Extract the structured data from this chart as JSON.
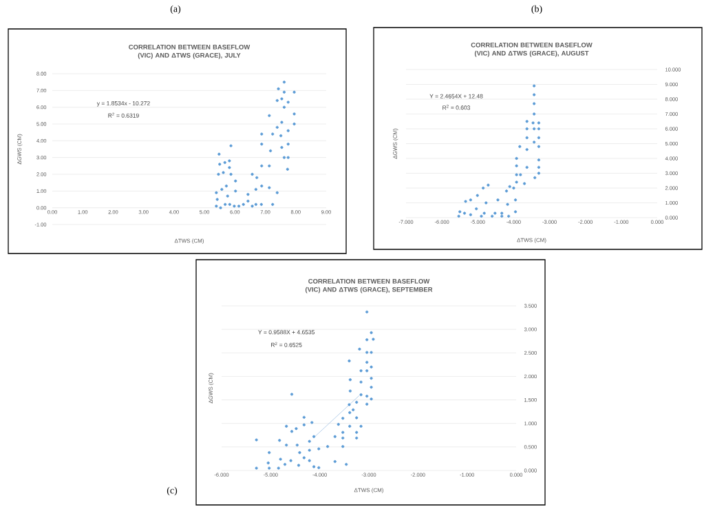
{
  "chart_data": [
    {
      "type": "scatter",
      "title": "CORRELATION BETWEEN BASEFLOW (VIC) AND ΔTWS (GRACE), JULY",
      "xlabel": "ΔTWS  (CM)",
      "ylabel": "ΔGWS (CM)",
      "annotations": [
        "(a)",
        "y = 1.8534x - 10.272",
        "R$^{2}$ = 0.6319"
      ],
      "xlim": [
        0,
        9
      ],
      "ylim": [
        -1,
        8
      ],
      "xticks": [
        {
          "value": 0,
          "label": "0.00"
        },
        {
          "value": 1,
          "label": "1.00"
        },
        {
          "value": 2,
          "label": "2.00"
        },
        {
          "value": 3,
          "label": "3.00"
        },
        {
          "value": 4,
          "label": "4.00"
        },
        {
          "value": 5,
          "label": "5.00"
        },
        {
          "value": 6,
          "label": "6.00"
        },
        {
          "value": 7,
          "label": "7.00"
        },
        {
          "value": 8,
          "label": "8.00"
        },
        {
          "value": 9,
          "label": "9.00"
        }
      ],
      "yticks": [
        {
          "value": -1,
          "label": "-1.00"
        },
        {
          "value": 0,
          "label": "0.00"
        },
        {
          "value": 1,
          "label": "1.00"
        },
        {
          "value": 2,
          "label": "2.00"
        },
        {
          "value": 3,
          "label": "3.00"
        },
        {
          "value": 4,
          "label": "4.00"
        },
        {
          "value": 5,
          "label": "5.00"
        },
        {
          "value": 6,
          "label": "6.00"
        },
        {
          "value": 7,
          "label": "7.00"
        },
        {
          "value": 8,
          "label": "8.00"
        }
      ],
      "grid": "y",
      "marker": "circle",
      "series": [
        {
          "type": "scatter",
          "color": "#5b9bd5",
          "x": [
            5.48,
            5.46,
            5.62,
            5.5,
            5.67,
            5.87,
            5.82,
            5.82,
            5.87,
            6.02,
            6.02,
            5.39,
            5.42,
            5.57,
            5.72,
            5.76,
            5.39,
            5.53,
            5.68,
            5.83,
            5.98,
            6.13,
            6.28,
            6.43,
            6.57,
            6.69,
            6.43,
            6.57,
            6.69,
            6.72,
            6.87,
            6.88,
            6.88,
            6.88,
            6.88,
            7.13,
            7.13,
            7.24,
            7.39,
            7.13,
            7.17,
            7.24,
            7.39,
            7.43,
            7.39,
            7.54,
            7.62,
            7.62,
            7.54,
            7.51,
            7.54,
            7.62,
            7.73,
            7.75,
            7.75,
            7.75,
            7.75,
            7.95,
            7.95,
            7.95,
            7.62
          ],
          "values": [
            3.2,
            2.0,
            2.1,
            2.6,
            2.7,
            3.7,
            2.8,
            2.4,
            2.0,
            1.6,
            1.0,
            0.9,
            0.5,
            1.1,
            1.3,
            0.7,
            0.1,
            0.0,
            0.2,
            0.2,
            0.1,
            0.1,
            0.2,
            0.4,
            0.1,
            0.2,
            0.8,
            2.0,
            1.1,
            1.8,
            0.2,
            1.3,
            2.5,
            3.8,
            4.4,
            5.5,
            1.2,
            0.2,
            0.9,
            2.5,
            3.4,
            4.4,
            4.8,
            7.1,
            6.4,
            6.5,
            7.5,
            6.0,
            5.1,
            4.3,
            3.6,
            3.0,
            2.3,
            3.0,
            3.8,
            4.6,
            6.3,
            6.9,
            5.6,
            5.0,
            6.9
          ]
        }
      ]
    },
    {
      "type": "scatter",
      "title": "CORRELATION BETWEEN BASEFLOW (VIC) AND ΔTWS (GRACE), AUGUST",
      "xlabel": "ΔTWS  (CM)",
      "ylabel": "ΔGWS (CM)",
      "annotations": [
        "(b)",
        "Y = 2.4654X + 12.48",
        "R$^{2}$ = 0.603"
      ],
      "xlim": [
        -7,
        0
      ],
      "ylim": [
        0,
        10
      ],
      "xticks": [
        {
          "value": -7,
          "label": "-7.000"
        },
        {
          "value": -6,
          "label": "-6.000"
        },
        {
          "value": -5,
          "label": "-5.000"
        },
        {
          "value": -4,
          "label": "-4.000"
        },
        {
          "value": -3,
          "label": "-3.000"
        },
        {
          "value": -2,
          "label": "-2.000"
        },
        {
          "value": -1,
          "label": "-1.000"
        },
        {
          "value": 0,
          "label": "0.000"
        }
      ],
      "yticks": [
        {
          "value": 0,
          "label": "0.000"
        },
        {
          "value": 1,
          "label": "1.000"
        },
        {
          "value": 2,
          "label": "2.000"
        },
        {
          "value": 3,
          "label": "3.000"
        },
        {
          "value": 4,
          "label": "4.000"
        },
        {
          "value": 5,
          "label": "5.000"
        },
        {
          "value": 6,
          "label": "6.000"
        },
        {
          "value": 7,
          "label": "7.000"
        },
        {
          "value": 8,
          "label": "8.000"
        },
        {
          "value": 9,
          "label": "9.000"
        },
        {
          "value": 10,
          "label": "10.000"
        }
      ],
      "grid": "y",
      "marker": "circle",
      "series": [
        {
          "type": "scatter",
          "color": "#5b9bd5",
          "x": [
            -3.43,
            -3.43,
            -3.43,
            -3.43,
            -3.46,
            -3.43,
            -3.43,
            -3.3,
            -3.3,
            -3.3,
            -3.3,
            -3.3,
            -3.3,
            -3.3,
            -3.41,
            -3.63,
            -3.63,
            -3.63,
            -3.63,
            -3.63,
            -3.83,
            -3.92,
            -3.92,
            -3.92,
            -3.92,
            -3.81,
            -3.7,
            -4.0,
            -3.95,
            -3.95,
            -4.11,
            -4.2,
            -4.17,
            -4.14,
            -4.33,
            -4.44,
            -4.52,
            -4.71,
            -4.85,
            -4.77,
            -4.82,
            -5.01,
            -5.04,
            -5.2,
            -5.2,
            -5.34,
            -5.37,
            -5.5,
            -5.53,
            -4.9,
            -4.6,
            -4.33
          ],
          "values": [
            8.9,
            8.3,
            7.7,
            7.0,
            6.4,
            6.0,
            5.1,
            6.4,
            6.0,
            5.4,
            4.8,
            3.9,
            3.4,
            3.0,
            2.7,
            6.5,
            6.0,
            5.4,
            4.6,
            3.4,
            4.8,
            4.0,
            3.5,
            2.9,
            2.4,
            2.9,
            2.3,
            2.0,
            1.2,
            0.4,
            2.1,
            1.8,
            0.9,
            0.1,
            0.3,
            1.2,
            0.3,
            2.2,
            2.0,
            1.0,
            0.3,
            1.5,
            0.6,
            1.2,
            0.2,
            1.1,
            0.3,
            0.4,
            0.1,
            0.1,
            0.1,
            0.1
          ]
        }
      ]
    },
    {
      "type": "scatter",
      "title": "CORRELATION BETWEEN BASEFLOW (VIC) AND ΔTWS (GRACE), SEPTEMBER",
      "xlabel": "ΔTWS  (CM)",
      "ylabel": "ΔGWS (CM)",
      "annotations": [
        "(c)",
        "Y = 0.9588X + 4.6535",
        "R$^{2}$ = 0.6525"
      ],
      "xlim": [
        -6,
        0
      ],
      "ylim": [
        0,
        3.5
      ],
      "xticks": [
        {
          "value": -6,
          "label": "-6.000"
        },
        {
          "value": -5,
          "label": "-5.000"
        },
        {
          "value": -4,
          "label": "-4.000"
        },
        {
          "value": -3,
          "label": "-3.000"
        },
        {
          "value": -2,
          "label": "-2.000"
        },
        {
          "value": -1,
          "label": "-1.000"
        },
        {
          "value": 0,
          "label": "0.000"
        }
      ],
      "yticks": [
        {
          "value": 0,
          "label": "0.000"
        },
        {
          "value": 0.5,
          "label": "0.500"
        },
        {
          "value": 1,
          "label": "1.000"
        },
        {
          "value": 1.5,
          "label": "1.500"
        },
        {
          "value": 2,
          "label": "2.000"
        },
        {
          "value": 2.5,
          "label": "2.500"
        },
        {
          "value": 3,
          "label": "3.000"
        },
        {
          "value": 3.5,
          "label": "3.500"
        }
      ],
      "grid": "y",
      "marker": "circle",
      "series": [
        {
          "type": "line",
          "color": "#a5c4e4",
          "marker": "none",
          "x": [
            -4.1,
            -3.2
          ],
          "values": [
            0.72,
            1.59
          ]
        },
        {
          "type": "scatter",
          "color": "#5b9bd5",
          "x": [
            -3.04,
            -2.95,
            -3.04,
            -2.91,
            -3.19,
            -3.04,
            -2.95,
            -3.4,
            -3.04,
            -2.95,
            -3.04,
            -3.16,
            -2.95,
            -3.16,
            -3.38,
            -3.38,
            -2.95,
            -3.16,
            -3.04,
            -2.95,
            -3.04,
            -3.25,
            -3.4,
            -3.32,
            -3.25,
            -3.39,
            -3.53,
            -3.39,
            -3.16,
            -3.25,
            -3.25,
            -3.62,
            -3.53,
            -3.53,
            -3.69,
            -3.53,
            -3.84,
            -3.69,
            -3.46,
            -4.02,
            -4.12,
            -4.16,
            -4.32,
            -4.32,
            -4.48,
            -4.57,
            -4.68,
            -4.57,
            -4.82,
            -4.68,
            -4.46,
            -4.41,
            -4.21,
            -4.21,
            -4.21,
            -4.32,
            -4.43,
            -4.59,
            -4.71,
            -4.8,
            -4.84,
            -5.03,
            -5.05,
            -5.03,
            -5.29,
            -5.29,
            -4.12,
            -4.02
          ],
          "values": [
            3.37,
            2.93,
            2.78,
            2.79,
            2.58,
            2.51,
            2.51,
            2.33,
            2.3,
            2.2,
            2.12,
            2.12,
            1.96,
            1.88,
            1.93,
            1.69,
            1.77,
            1.61,
            1.58,
            1.52,
            1.41,
            1.45,
            1.4,
            1.29,
            1.12,
            1.23,
            1.11,
            0.94,
            0.94,
            0.81,
            0.69,
            0.98,
            0.81,
            0.69,
            0.72,
            0.51,
            0.51,
            0.19,
            0.13,
            0.46,
            0.72,
            1.02,
            1.13,
            0.97,
            0.89,
            1.62,
            0.94,
            0.83,
            0.64,
            0.54,
            0.54,
            0.38,
            0.62,
            0.43,
            0.21,
            0.27,
            0.11,
            0.21,
            0.13,
            0.24,
            0.05,
            0.38,
            0.16,
            0.05,
            0.65,
            0.05,
            0.08,
            0.06
          ]
        }
      ]
    }
  ]
}
